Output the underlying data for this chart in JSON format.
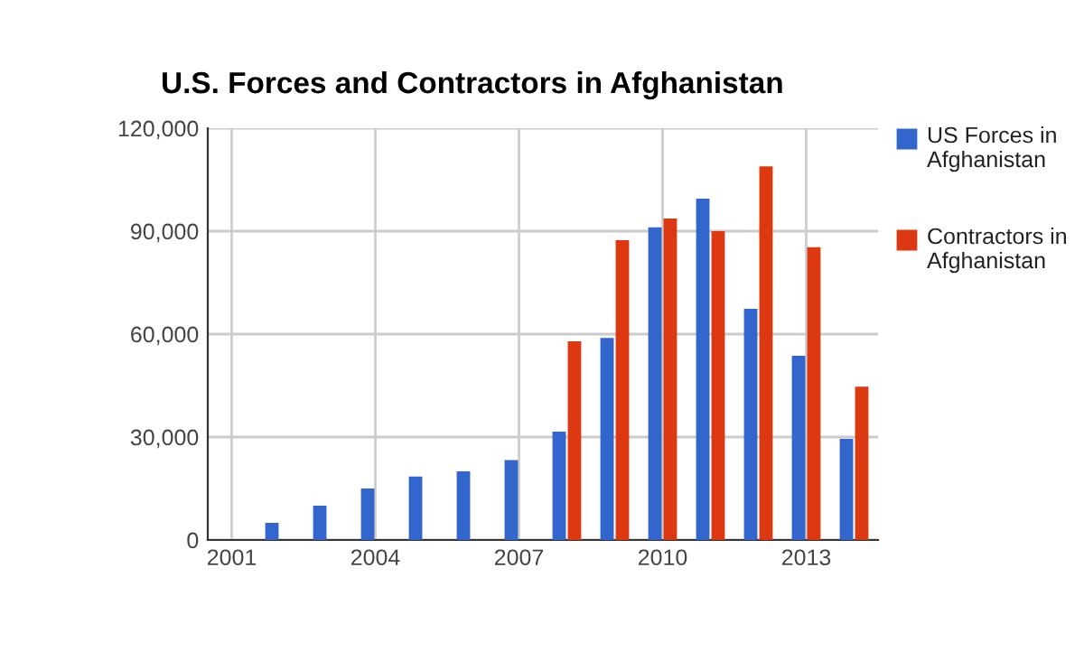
{
  "chart_data": {
    "type": "bar",
    "title": "U.S. Forces and Contractors in Afghanistan",
    "x": [
      2002,
      2003,
      2004,
      2005,
      2006,
      2007,
      2008,
      2009,
      2010,
      2011,
      2012,
      2013,
      2014
    ],
    "series": [
      {
        "name": "US Forces in Afghanistan",
        "color": "#3366cc",
        "values": [
          5000,
          10000,
          15000,
          18500,
          20000,
          23300,
          31600,
          58900,
          91100,
          99500,
          67400,
          53700,
          29500
        ]
      },
      {
        "name": "Contractors in Afghanistan",
        "color": "#dc3912",
        "values": [
          null,
          null,
          null,
          null,
          null,
          null,
          57900,
          87400,
          93700,
          90000,
          108900,
          85300,
          44700
        ]
      }
    ],
    "xlim": [
      2000.5,
      2014.5
    ],
    "xticks": [
      2001,
      2004,
      2007,
      2010,
      2013
    ],
    "ylim": [
      0,
      120000
    ],
    "yticks": [
      {
        "value": 0,
        "label": "0"
      },
      {
        "value": 30000,
        "label": "30,000"
      },
      {
        "value": 60000,
        "label": "60,000"
      },
      {
        "value": 90000,
        "label": "90,000"
      },
      {
        "value": 120000,
        "label": "120,000"
      }
    ],
    "grid": true,
    "legend": "right"
  }
}
